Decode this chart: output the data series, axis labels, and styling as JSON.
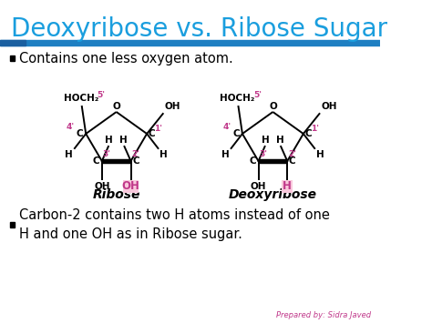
{
  "title": "Deoxyribose vs. Ribose Sugar",
  "title_color": "#1a9ede",
  "title_fontsize": 20,
  "bg_color": "#ffffff",
  "bar_color_main": "#1e7fc2",
  "bar_color_dark": "#1a5fa0",
  "bullet1": "Contains one less oxygen atom.",
  "bullet2": "Carbon-2 contains two H atoms instead of one\nH and one OH as in Ribose sugar.",
  "bullet_fontsize": 10.5,
  "label_ribose": "Ribose",
  "label_deoxyribose": "Deoxyribose",
  "credit": "Prepared by: Sidra Javed",
  "pink_color": "#c0388a",
  "highlight_pink": "#f9c8dc",
  "black": "#000000"
}
